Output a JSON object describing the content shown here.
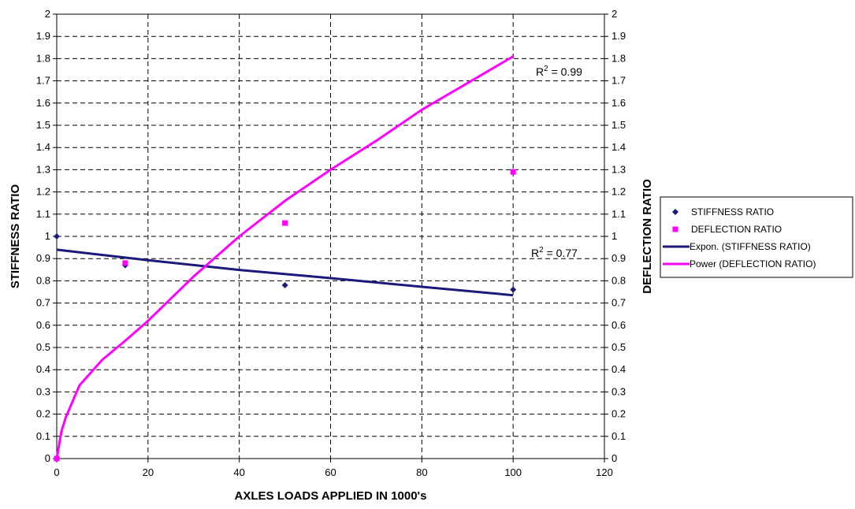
{
  "chart_data": {
    "type": "scatter",
    "title": "",
    "xlabel": "AXLES LOADS APPLIED IN 1000's",
    "ylabel_left": "STIFFNESS RATIO",
    "ylabel_right": "DEFLECTION RATIO",
    "xlim": [
      0,
      120
    ],
    "ylim": [
      0,
      2
    ],
    "x_ticks": [
      0,
      20,
      40,
      60,
      80,
      100,
      120
    ],
    "y_ticks": [
      0,
      0.1,
      0.2,
      0.3,
      0.4,
      0.5,
      0.6,
      0.7,
      0.8,
      0.9,
      1,
      1.1,
      1.2,
      1.3,
      1.4,
      1.5,
      1.6,
      1.7,
      1.8,
      1.9,
      2
    ],
    "grid": true,
    "legend_position": "right",
    "series": [
      {
        "name": "STIFFNESS RATIO",
        "kind": "points",
        "marker": "diamond",
        "color": "#1a1a7a",
        "x": [
          0,
          15,
          50,
          100
        ],
        "y": [
          1.0,
          0.87,
          0.78,
          0.76
        ]
      },
      {
        "name": "DEFLECTION RATIO",
        "kind": "points",
        "marker": "square",
        "color": "#ff00ff",
        "x": [
          0,
          15,
          50,
          100
        ],
        "y": [
          0.0,
          0.88,
          1.06,
          1.29
        ]
      },
      {
        "name": "Expon. (STIFFNESS RATIO)",
        "kind": "trendline",
        "fit": "exponential",
        "color": "#1a1a7a",
        "x": [
          0,
          20,
          40,
          60,
          80,
          100
        ],
        "y": [
          0.94,
          0.893,
          0.849,
          0.812,
          0.773,
          0.735
        ]
      },
      {
        "name": "Power (DEFLECTION RATIO)",
        "kind": "trendline",
        "fit": "power",
        "color": "#ff00ff",
        "x": [
          0,
          1,
          2,
          5,
          10,
          15,
          20,
          30,
          40,
          50,
          60,
          70,
          80,
          90,
          100
        ],
        "y": [
          0,
          0.12,
          0.187,
          0.33,
          0.445,
          0.53,
          0.62,
          0.82,
          1.0,
          1.16,
          1.3,
          1.43,
          1.57,
          1.69,
          1.81
        ]
      }
    ],
    "annotations": [
      {
        "text_base": "R",
        "text_sup": "2",
        "text_rest": " = 0.99"
      },
      {
        "text_base": "R",
        "text_sup": "2",
        "text_rest": " = 0.77"
      }
    ]
  }
}
